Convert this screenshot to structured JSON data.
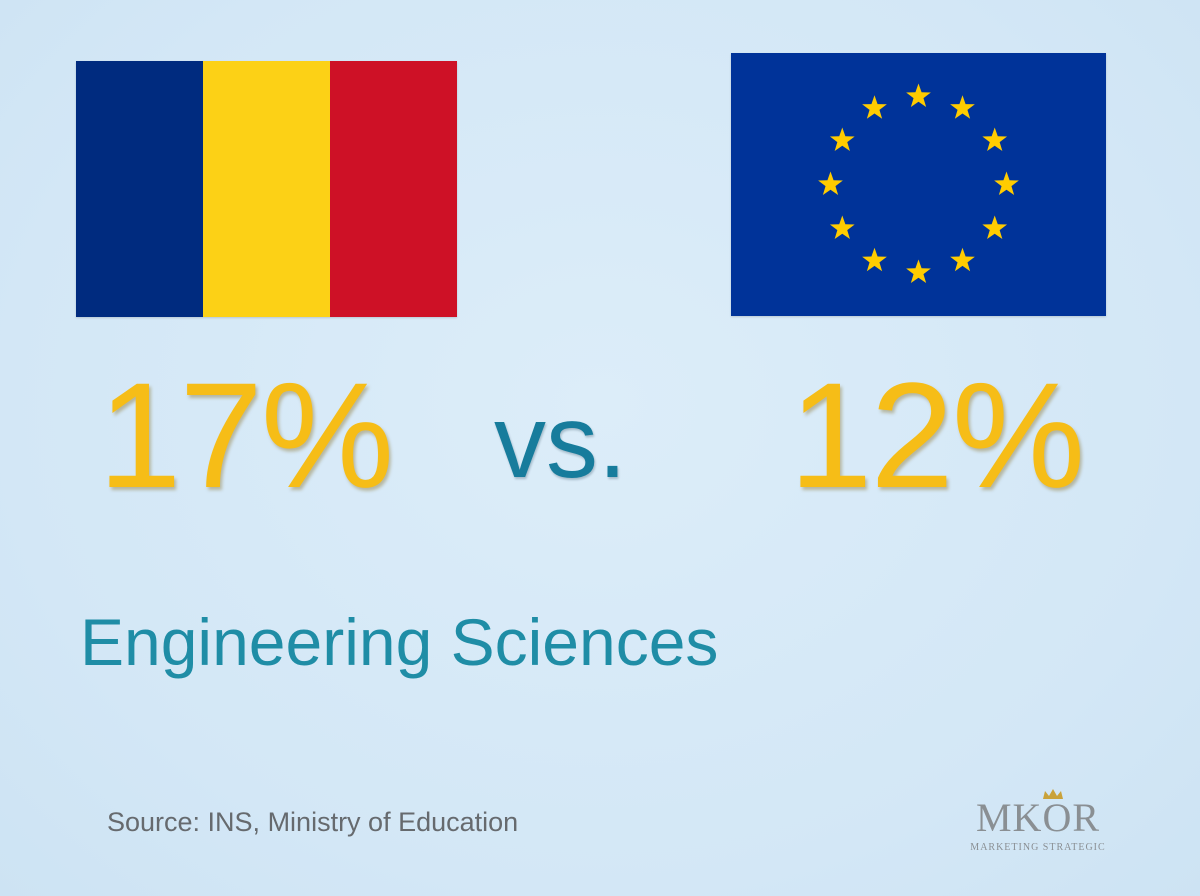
{
  "left_flag": {
    "icon": "romania-flag-icon",
    "colors": [
      "#002b7f",
      "#fcd116",
      "#ce1126"
    ]
  },
  "right_flag": {
    "icon": "european-union-flag-icon",
    "background": "#003399",
    "star_color": "#ffcc00",
    "star_count": 12
  },
  "left_value": "17%",
  "versus": "vs.",
  "right_value": "12%",
  "subject": "Engineering Sciences",
  "source": "Source: INS, Ministry of Education",
  "logo": {
    "icon": "mkor-logo",
    "name": "MKOR",
    "tagline": "MARKETING STRATEGIC"
  },
  "colors": {
    "background": "#d6eaf7",
    "stat": "#f6bd17",
    "accent": "#1f8da6",
    "source_text": "#666a6e"
  }
}
